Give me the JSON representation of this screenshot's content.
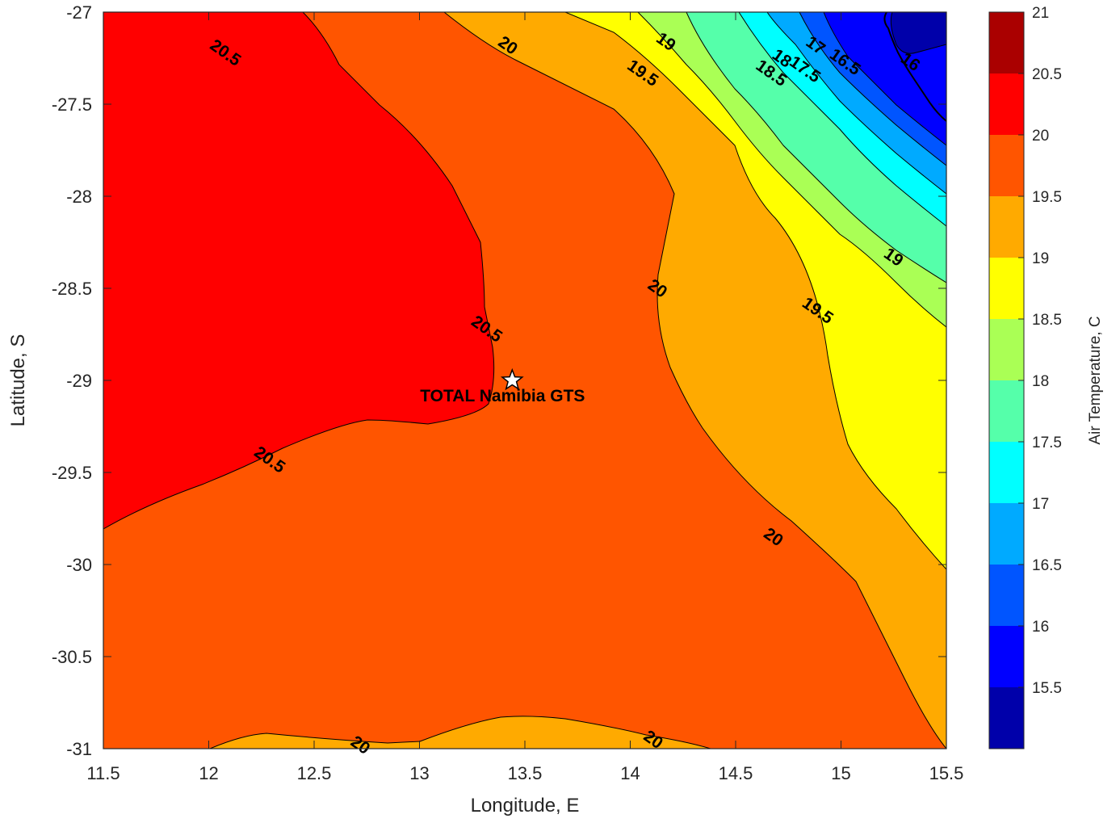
{
  "chart_data": {
    "type": "contour",
    "xlabel": "Longitude, E",
    "ylabel": "Latitude, S",
    "xlim": [
      11.5,
      15.5
    ],
    "ylim": [
      -31,
      -27
    ],
    "xticks": [
      "11.5",
      "12",
      "12.5",
      "13",
      "13.5",
      "14",
      "14.5",
      "15",
      "15.5"
    ],
    "yticks": [
      "-27",
      "-27.5",
      "-28",
      "-28.5",
      "-29",
      "-29.5",
      "-30",
      "-30.5",
      "-31"
    ],
    "grid": false,
    "colorbar": {
      "label": "Air Temperature, C",
      "ticks": [
        "21",
        "20.5",
        "20",
        "19.5",
        "19",
        "18.5",
        "18",
        "17.5",
        "17",
        "16.5",
        "16",
        "15.5"
      ],
      "levels": [
        {
          "min": 20.5,
          "max": 21.0,
          "color": "#aa0000"
        },
        {
          "min": 20.0,
          "max": 20.5,
          "color": "#ff0000"
        },
        {
          "min": 19.5,
          "max": 20.0,
          "color": "#ff5500"
        },
        {
          "min": 19.0,
          "max": 19.5,
          "color": "#ffaa00"
        },
        {
          "min": 18.5,
          "max": 19.0,
          "color": "#ffff00"
        },
        {
          "min": 18.0,
          "max": 18.5,
          "color": "#aaff55"
        },
        {
          "min": 17.5,
          "max": 18.0,
          "color": "#55ffaa"
        },
        {
          "min": 17.0,
          "max": 17.5,
          "color": "#00ffff"
        },
        {
          "min": 16.5,
          "max": 17.0,
          "color": "#00aaff"
        },
        {
          "min": 16.0,
          "max": 16.5,
          "color": "#0055ff"
        },
        {
          "min": 15.5,
          "max": 16.0,
          "color": "#0000ff"
        },
        {
          "min": 15.0,
          "max": 15.5,
          "color": "#0000aa"
        }
      ]
    },
    "contour_labels": [
      {
        "text": "20.5",
        "lon": 12.08,
        "lat": -27.22
      },
      {
        "text": "20",
        "lon": 13.42,
        "lat": -27.18
      },
      {
        "text": "19",
        "lon": 14.17,
        "lat": -27.16
      },
      {
        "text": "19.5",
        "lon": 14.06,
        "lat": -27.33
      },
      {
        "text": "18.5",
        "lon": 14.67,
        "lat": -27.33
      },
      {
        "text": "18",
        "lon": 14.72,
        "lat": -27.25
      },
      {
        "text": "17.5",
        "lon": 14.83,
        "lat": -27.31
      },
      {
        "text": "17",
        "lon": 14.88,
        "lat": -27.18
      },
      {
        "text": "16.5",
        "lon": 15.02,
        "lat": -27.27
      },
      {
        "text": "16",
        "lon": 15.33,
        "lat": -27.27
      },
      {
        "text": "19",
        "lon": 15.25,
        "lat": -28.33
      },
      {
        "text": "20",
        "lon": 14.13,
        "lat": -28.5
      },
      {
        "text": "19.5",
        "lon": 14.89,
        "lat": -28.62
      },
      {
        "text": "20.5",
        "lon": 13.32,
        "lat": -28.72
      },
      {
        "text": "20.5",
        "lon": 12.29,
        "lat": -29.43
      },
      {
        "text": "20",
        "lon": 14.68,
        "lat": -29.85
      },
      {
        "text": "20",
        "lon": 12.72,
        "lat": -30.98
      },
      {
        "text": "20",
        "lon": 14.11,
        "lat": -30.95
      }
    ],
    "site": {
      "name": "TOTAL Namibia GTS",
      "lon": 13.44,
      "lat": -29.0
    }
  }
}
